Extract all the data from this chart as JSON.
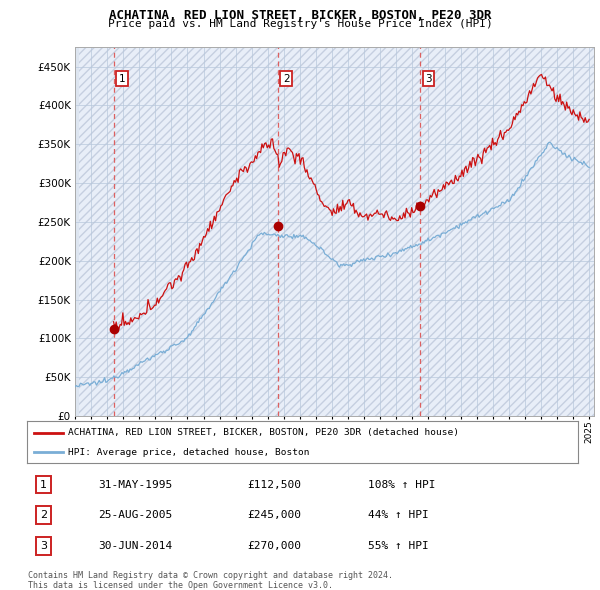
{
  "title": "ACHATINA, RED LION STREET, BICKER, BOSTON, PE20 3DR",
  "subtitle": "Price paid vs. HM Land Registry's House Price Index (HPI)",
  "legend_line1": "ACHATINA, RED LION STREET, BICKER, BOSTON, PE20 3DR (detached house)",
  "legend_line2": "HPI: Average price, detached house, Boston",
  "transactions": [
    {
      "num": 1,
      "date": "31-MAY-1995",
      "price": 112500,
      "pct": "108%",
      "dir": "↑"
    },
    {
      "num": 2,
      "date": "25-AUG-2005",
      "price": 245000,
      "pct": "44%",
      "dir": "↑"
    },
    {
      "num": 3,
      "date": "30-JUN-2014",
      "price": 270000,
      "pct": "55%",
      "dir": "↑"
    }
  ],
  "footnote1": "Contains HM Land Registry data © Crown copyright and database right 2024.",
  "footnote2": "This data is licensed under the Open Government Licence v3.0.",
  "xlim_start": 1993.25,
  "xlim_end": 2025.3,
  "ylim_min": 0,
  "ylim_max": 475000,
  "hpi_color": "#7aaed6",
  "price_color": "#cc1111",
  "dashed_line_color": "#dd6666",
  "marker_color": "#aa0000",
  "transaction_years": [
    1995.416,
    2005.648,
    2014.498
  ],
  "transaction_numbers": [
    1,
    2,
    3
  ],
  "transaction_prices": [
    112500,
    245000,
    270000
  ]
}
